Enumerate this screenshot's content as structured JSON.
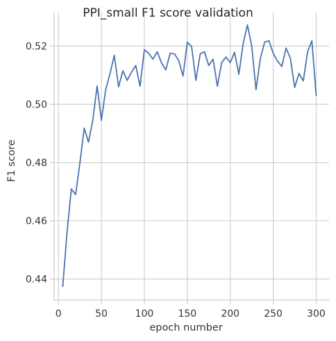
{
  "chart_data": {
    "type": "line",
    "title": "PPI_small F1 score validation",
    "xlabel": "epoch number",
    "ylabel": "F1 score",
    "xlim": [
      -5,
      315
    ],
    "ylim": [
      0.4328,
      0.5315
    ],
    "xticks": [
      0,
      50,
      100,
      150,
      200,
      250,
      300
    ],
    "yticks": [
      0.44,
      0.46,
      0.48,
      0.5,
      0.52
    ],
    "ytick_labels": [
      "0.44",
      "0.46",
      "0.48",
      "0.50",
      "0.52"
    ],
    "grid": true,
    "color": "#4c72b0",
    "series": [
      {
        "x": [
          5,
          10,
          15,
          20,
          25,
          30,
          35,
          40,
          45,
          50,
          55,
          60,
          65,
          70,
          75,
          80,
          85,
          90,
          95,
          100,
          105,
          110,
          115,
          120,
          125,
          130,
          135,
          140,
          145,
          150,
          155,
          160,
          165,
          170,
          175,
          180,
          185,
          190,
          195,
          200,
          205,
          210,
          215,
          220,
          225,
          230,
          235,
          240,
          245,
          250,
          255,
          260,
          265,
          270,
          275,
          280,
          285,
          290,
          295,
          300
        ],
        "values": [
          0.4375,
          0.456,
          0.471,
          0.469,
          0.48,
          0.4918,
          0.487,
          0.4945,
          0.5063,
          0.4945,
          0.505,
          0.5105,
          0.5168,
          0.506,
          0.5115,
          0.5082,
          0.511,
          0.5133,
          0.5062,
          0.5187,
          0.5175,
          0.5155,
          0.518,
          0.5142,
          0.5118,
          0.5175,
          0.5173,
          0.515,
          0.5097,
          0.5213,
          0.5198,
          0.5082,
          0.5173,
          0.518,
          0.5133,
          0.5155,
          0.5062,
          0.5143,
          0.5162,
          0.5143,
          0.5178,
          0.5103,
          0.5208,
          0.5272,
          0.52,
          0.505,
          0.5157,
          0.5213,
          0.5218,
          0.5175,
          0.5148,
          0.513,
          0.5193,
          0.5157,
          0.5058,
          0.5106,
          0.508,
          0.518,
          0.5218,
          0.503
        ]
      }
    ]
  }
}
